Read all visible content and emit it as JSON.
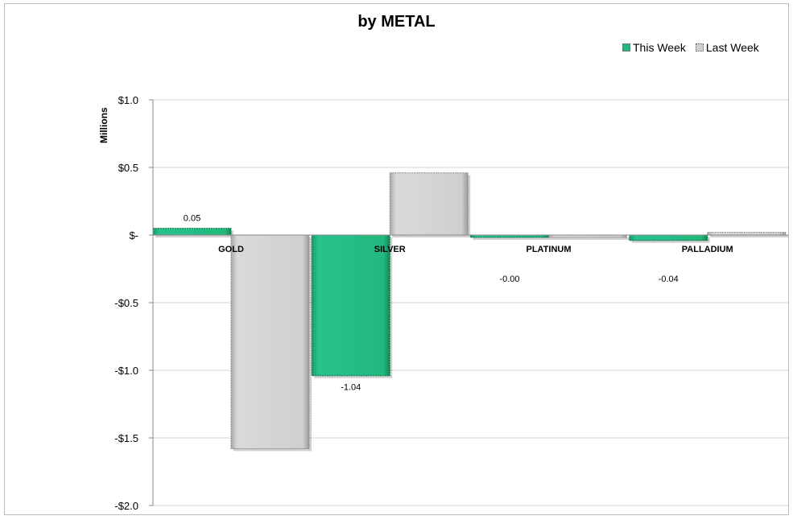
{
  "chart_data": {
    "type": "bar",
    "title": "by METAL",
    "ylabel": "Millions",
    "xlabel": "",
    "categories": [
      "GOLD",
      "SILVER",
      "PLATINUM",
      "PALLADIUM"
    ],
    "series": [
      {
        "name": "This Week",
        "color": "#22b87f",
        "values": [
          0.05,
          -1.04,
          -0.002,
          -0.04
        ],
        "labels": [
          "0.05",
          "-1.04",
          "-0.00",
          "-0.04"
        ]
      },
      {
        "name": "Last Week",
        "color": "#d0d0d0",
        "values": [
          -1.58,
          0.46,
          -0.01,
          0.02
        ]
      }
    ],
    "ylim": [
      -2.0,
      1.0
    ],
    "yticks": [
      {
        "value": 1.0,
        "label": "$1.0"
      },
      {
        "value": 0.5,
        "label": "$0.5"
      },
      {
        "value": 0.0,
        "label": "$-"
      },
      {
        "value": -0.5,
        "label": "-$0.5"
      },
      {
        "value": -1.0,
        "label": "-$1.0"
      },
      {
        "value": -1.5,
        "label": "-$1.5"
      },
      {
        "value": -2.0,
        "label": "-$2.0"
      }
    ],
    "grid": true,
    "legend_position": "top-right"
  }
}
